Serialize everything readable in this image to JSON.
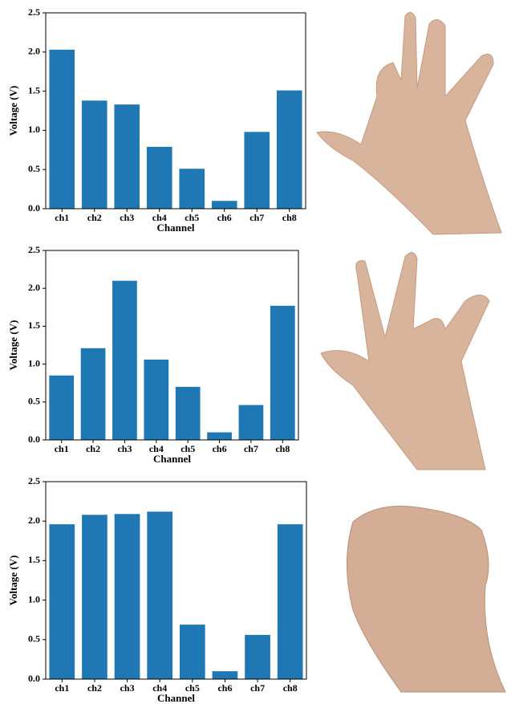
{
  "chart_data": [
    {
      "type": "bar",
      "x_label": "Channel",
      "y_label": "Voltage (V)",
      "categories": [
        "ch1",
        "ch2",
        "ch3",
        "ch4",
        "ch5",
        "ch6",
        "ch7",
        "ch8"
      ],
      "values": [
        2.03,
        1.38,
        1.33,
        0.79,
        0.51,
        0.1,
        0.98,
        1.51
      ],
      "color": "#1f77b4",
      "ylim": [
        0,
        2.5
      ],
      "yticks": [
        {
          "value": 0,
          "label": "0.0"
        },
        0.5,
        {
          "value": 1,
          "label": "1.0"
        },
        1.5,
        {
          "value": 2,
          "label": "2.0"
        },
        2.5
      ]
    },
    {
      "type": "bar",
      "x_label": "Channel",
      "y_label": "Voltage (V)",
      "categories": [
        "ch1",
        "ch2",
        "ch3",
        "ch4",
        "ch5",
        "ch6",
        "ch7",
        "ch8"
      ],
      "values": [
        0.85,
        1.21,
        2.1,
        1.06,
        0.7,
        0.1,
        0.46,
        1.77
      ],
      "color": "#1f77b4",
      "ylim": [
        0,
        2.5
      ],
      "yticks": [
        {
          "value": 0,
          "label": "0.0"
        },
        0.5,
        {
          "value": 1,
          "label": "1.0"
        },
        1.5,
        {
          "value": 2,
          "label": "2.0"
        },
        2.5
      ]
    },
    {
      "type": "bar",
      "x_label": "Channel",
      "y_label": "Voltage (V)",
      "categories": [
        "ch1",
        "ch2",
        "ch3",
        "ch4",
        "ch5",
        "ch6",
        "ch7",
        "ch8"
      ],
      "values": [
        1.96,
        2.08,
        2.09,
        2.12,
        0.69,
        0.1,
        0.56,
        1.96
      ],
      "color": "#1f77b4",
      "ylim": [
        0,
        2.5
      ],
      "yticks": [
        {
          "value": 0,
          "label": "0.0"
        },
        0.5,
        {
          "value": 1,
          "label": "1.0"
        },
        1.5,
        {
          "value": 2,
          "label": "2.0"
        },
        2.5
      ]
    }
  ]
}
